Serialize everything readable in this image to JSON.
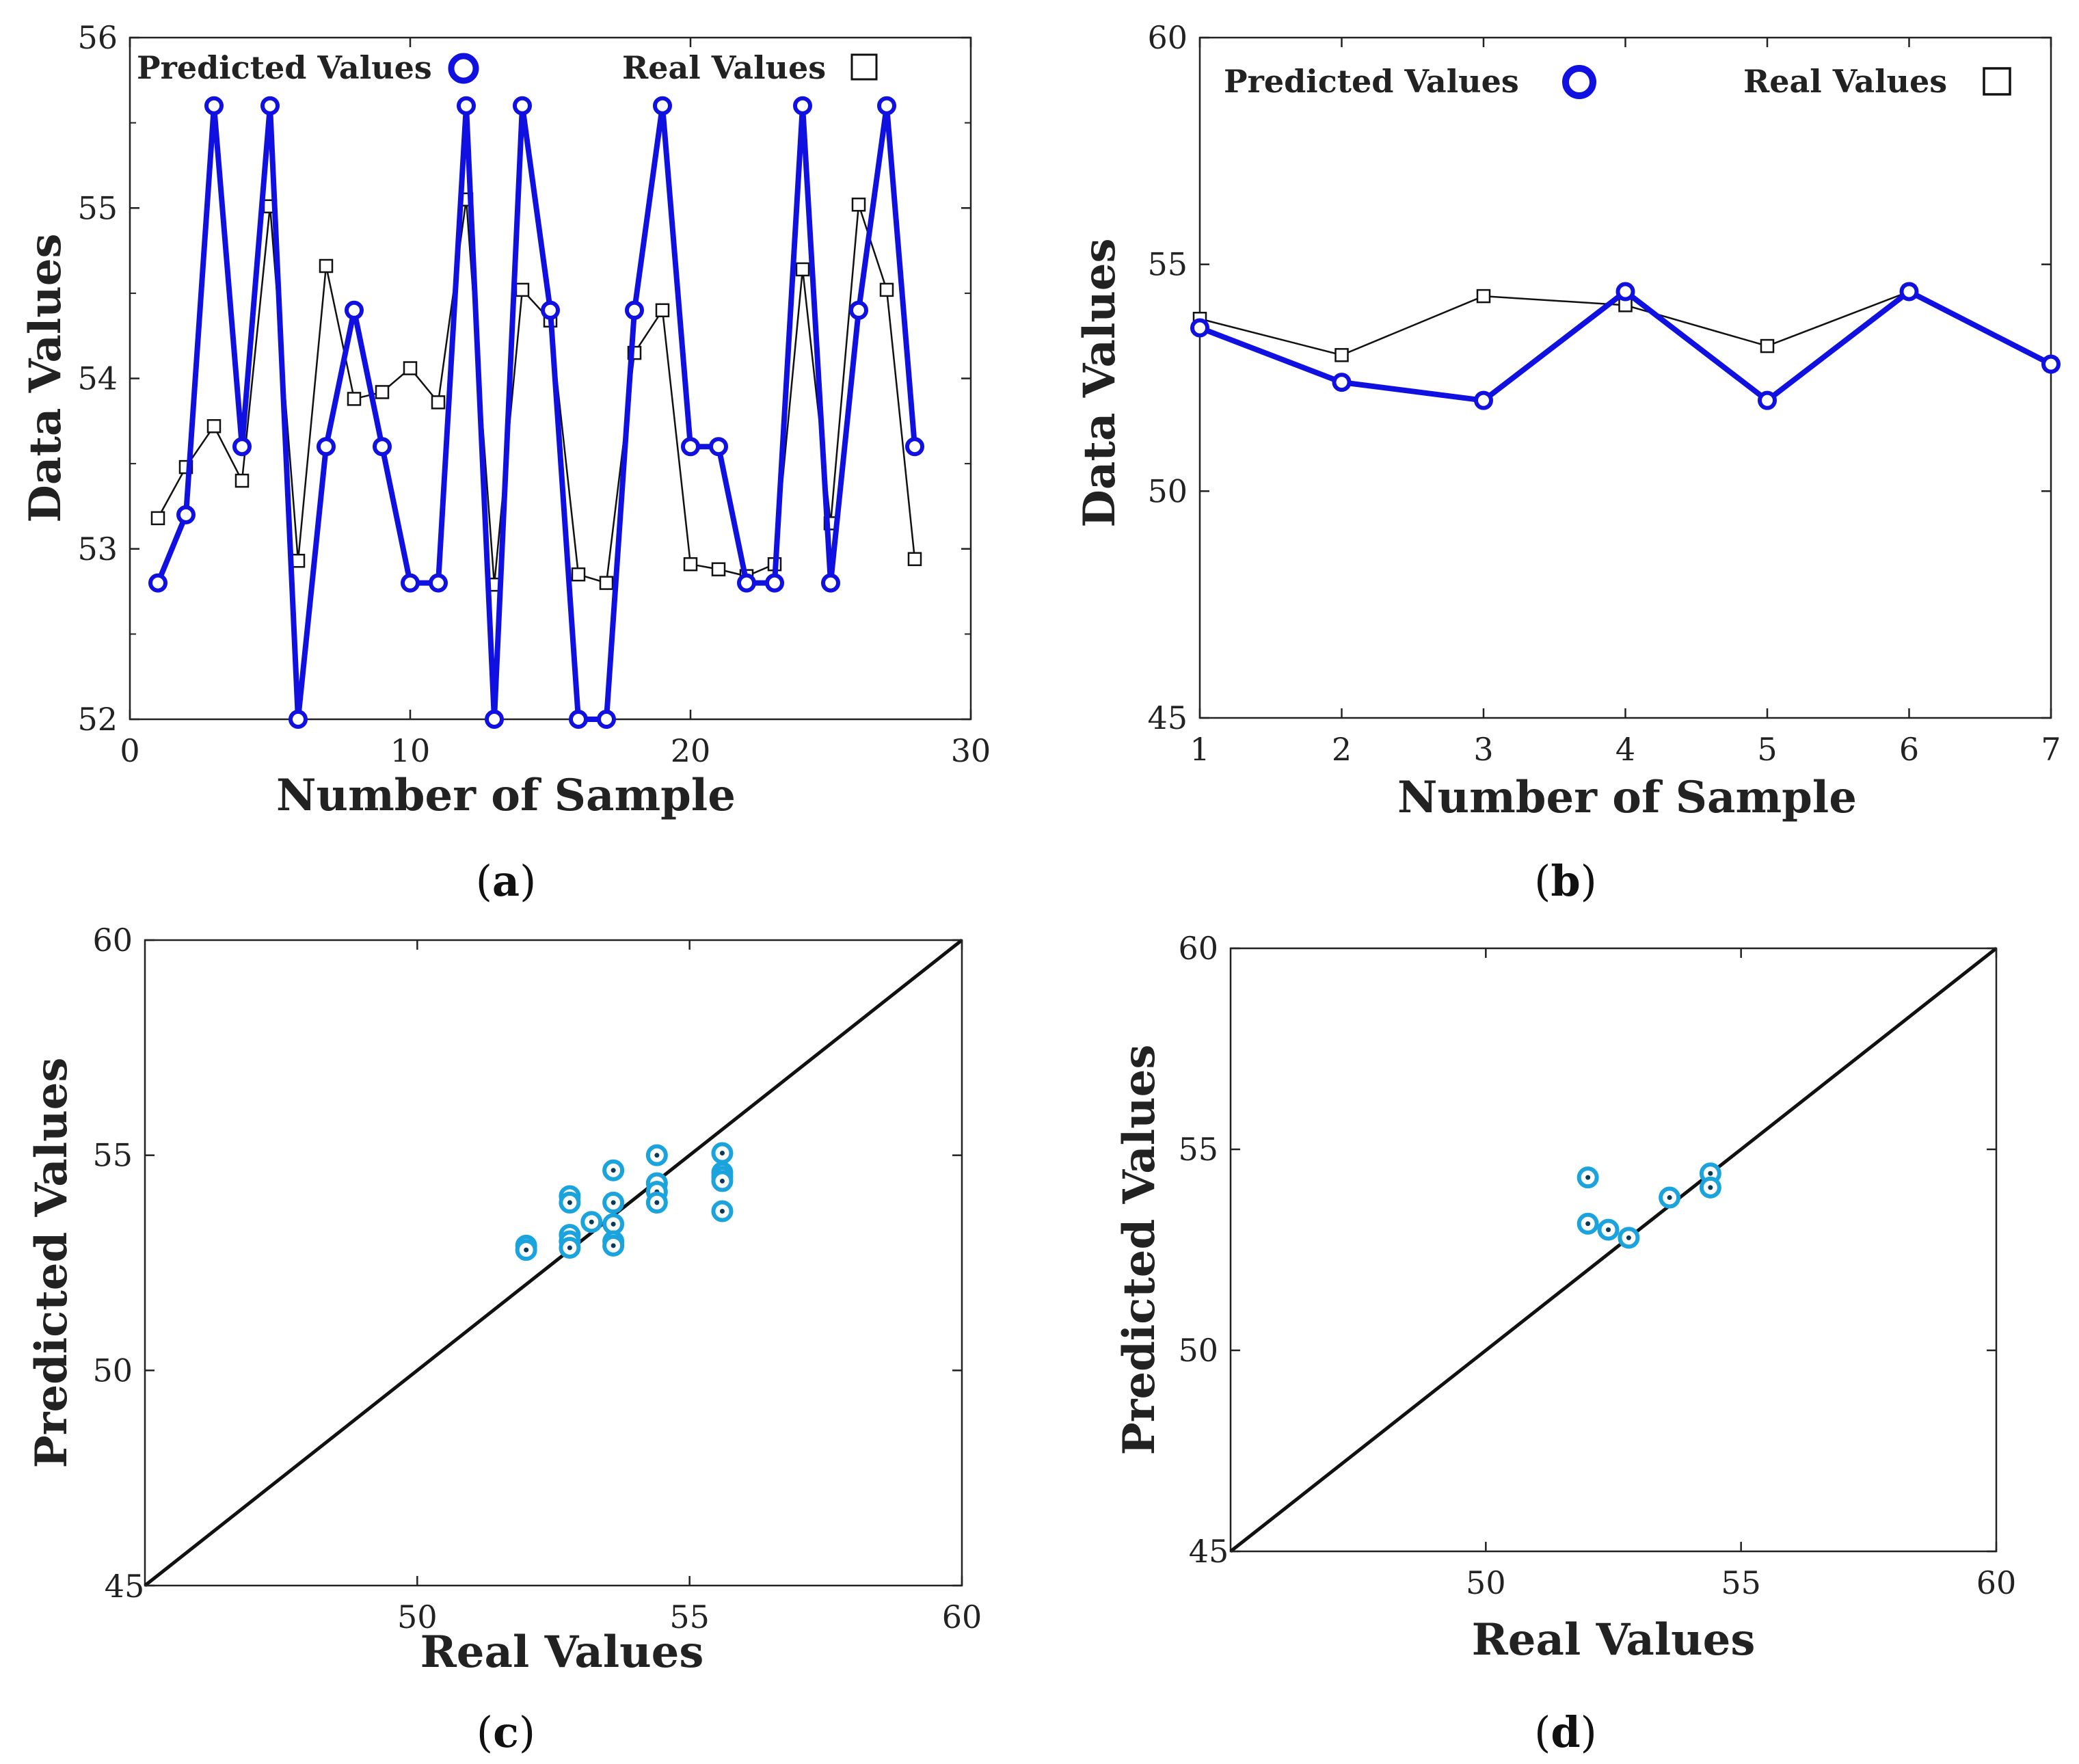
{
  "colors": {
    "predicted": "#1010e0",
    "real": "#111111",
    "scatter": "#1aa3dd",
    "diagonal": "#111111"
  },
  "chart_data": [
    {
      "id": "a",
      "type": "line",
      "panel_label": "a",
      "xlabel": "Number of Sample",
      "ylabel": "Data Values",
      "xlim": [
        0,
        30
      ],
      "ylim": [
        52,
        56
      ],
      "xticks": [
        0,
        10,
        20,
        30
      ],
      "yticks": [
        52,
        53,
        54,
        55,
        56
      ],
      "legend": {
        "predicted": "Predicted Values",
        "real": "Real Values",
        "placement": "top"
      },
      "x": [
        1,
        2,
        3,
        4,
        5,
        6,
        7,
        8,
        9,
        10,
        11,
        12,
        13,
        14,
        15,
        16,
        17,
        18,
        19,
        20,
        21,
        22,
        23,
        24,
        25,
        26,
        27,
        28
      ],
      "series": [
        {
          "name": "Predicted Values",
          "values": [
            52.8,
            53.2,
            55.6,
            53.6,
            55.6,
            52.0,
            53.6,
            54.4,
            53.6,
            52.8,
            52.8,
            55.6,
            52.0,
            55.6,
            54.4,
            52.0,
            52.0,
            54.4,
            55.6,
            53.6,
            53.6,
            52.8,
            52.8,
            55.6,
            52.8,
            54.4,
            55.6,
            53.6
          ]
        },
        {
          "name": "Real Values",
          "values": [
            53.18,
            53.48,
            53.72,
            53.4,
            55.01,
            52.93,
            54.66,
            53.88,
            53.92,
            54.06,
            53.86,
            55.05,
            52.79,
            54.52,
            54.34,
            52.85,
            52.8,
            54.15,
            54.4,
            52.91,
            52.88,
            52.84,
            52.91,
            54.64,
            53.15,
            55.02,
            54.52,
            52.94
          ]
        }
      ]
    },
    {
      "id": "b",
      "type": "line",
      "panel_label": "b",
      "xlabel": "Number of Sample",
      "ylabel": "Data Values",
      "xlim": [
        1,
        7
      ],
      "ylim": [
        45,
        60
      ],
      "xticks": [
        1,
        2,
        3,
        4,
        5,
        6,
        7
      ],
      "yticks": [
        45,
        50,
        55,
        60
      ],
      "legend": {
        "predicted": "Predicted Values",
        "real": "Real Values",
        "placement": "top"
      },
      "x": [
        1,
        2,
        3,
        4,
        5,
        6,
        7
      ],
      "series": [
        {
          "name": "Predicted Values",
          "values": [
            53.6,
            52.4,
            52.0,
            54.4,
            52.0,
            54.4,
            52.8
          ]
        },
        {
          "name": "Real Values",
          "values": [
            53.8,
            53.0,
            54.3,
            54.1,
            53.2,
            54.4,
            52.8
          ]
        }
      ]
    },
    {
      "id": "c",
      "type": "scatter",
      "panel_label": "c",
      "xlabel": "Real Values",
      "ylabel": "Predicted Values",
      "xlim": [
        45,
        60
      ],
      "ylim": [
        45,
        60
      ],
      "xticks": [
        50,
        55,
        60
      ],
      "yticks": [
        45,
        50,
        55,
        60
      ],
      "corner_label": "45",
      "points": [
        [
          52.0,
          52.9
        ],
        [
          52.0,
          52.8
        ],
        [
          52.8,
          54.05
        ],
        [
          52.8,
          53.9
        ],
        [
          52.8,
          53.15
        ],
        [
          52.8,
          53.0
        ],
        [
          52.8,
          52.85
        ],
        [
          53.2,
          53.45
        ],
        [
          53.6,
          54.65
        ],
        [
          53.6,
          53.9
        ],
        [
          53.6,
          53.4
        ],
        [
          53.6,
          53.0
        ],
        [
          53.6,
          52.9
        ],
        [
          54.4,
          55.0
        ],
        [
          54.4,
          54.35
        ],
        [
          54.4,
          54.15
        ],
        [
          54.4,
          53.9
        ],
        [
          55.6,
          55.05
        ],
        [
          55.6,
          54.6
        ],
        [
          55.6,
          54.5
        ],
        [
          55.6,
          54.4
        ],
        [
          55.6,
          53.7
        ]
      ]
    },
    {
      "id": "d",
      "type": "scatter",
      "panel_label": "d",
      "xlabel": "Real Values",
      "ylabel": "Predicted Values",
      "xlim": [
        45,
        60
      ],
      "ylim": [
        45,
        60
      ],
      "xticks": [
        50,
        55,
        60
      ],
      "yticks": [
        45,
        50,
        55,
        60
      ],
      "corner_label": "45",
      "points": [
        [
          52.0,
          54.3
        ],
        [
          52.0,
          53.15
        ],
        [
          52.4,
          53.0
        ],
        [
          52.8,
          52.8
        ],
        [
          53.6,
          53.8
        ],
        [
          54.4,
          54.4
        ],
        [
          54.4,
          54.05
        ]
      ]
    }
  ]
}
